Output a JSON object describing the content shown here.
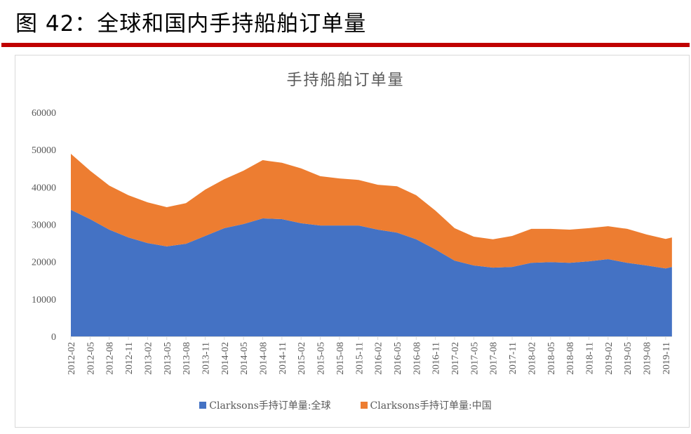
{
  "figure": {
    "title": "图 42：全球和国内手持船舶订单量",
    "rule_color": "#c00000"
  },
  "chart_data": {
    "type": "area",
    "stacked": true,
    "title": "手持船舶订单量",
    "xlabel": "",
    "ylabel": "",
    "ylim": [
      0,
      60000
    ],
    "yticks": [
      0,
      10000,
      20000,
      30000,
      40000,
      50000,
      60000
    ],
    "grid": false,
    "legend_position": "bottom",
    "x": [
      "2012-02",
      "2012-05",
      "2012-08",
      "2012-11",
      "2013-02",
      "2013-05",
      "2013-08",
      "2013-11",
      "2014-02",
      "2014-05",
      "2014-08",
      "2014-11",
      "2015-02",
      "2015-05",
      "2015-08",
      "2015-11",
      "2016-02",
      "2016-05",
      "2016-08",
      "2016-11",
      "2017-02",
      "2017-05",
      "2017-08",
      "2017-11",
      "2018-02",
      "2018-05",
      "2018-08",
      "2018-11",
      "2019-02",
      "2019-05",
      "2019-08",
      "2019-11",
      "2019-12"
    ],
    "xtick_labels": [
      "2012-02",
      "2012-05",
      "2012-08",
      "2012-11",
      "2013-02",
      "2013-05",
      "2013-08",
      "2013-11",
      "2014-02",
      "2014-05",
      "2014-08",
      "2014-11",
      "2015-02",
      "2015-05",
      "2015-08",
      "2015-11",
      "2016-02",
      "2016-05",
      "2016-08",
      "2016-11",
      "2017-02",
      "2017-05",
      "2017-08",
      "2017-11",
      "2018-02",
      "2018-05",
      "2018-08",
      "2018-11",
      "2019-02",
      "2019-05",
      "2019-08",
      "2019-11"
    ],
    "series": [
      {
        "name": "Clarksons手持订单量:全球",
        "color": "#4472c4",
        "values": [
          33900,
          31400,
          28600,
          26500,
          25000,
          24100,
          24800,
          26900,
          29000,
          30100,
          31600,
          31400,
          30300,
          29700,
          29700,
          29700,
          28600,
          27800,
          26000,
          23300,
          20300,
          19000,
          18400,
          18600,
          19700,
          19900,
          19700,
          20100,
          20700,
          19700,
          19000,
          18200,
          18600
        ]
      },
      {
        "name": "Clarksons手持订单量:中国",
        "color": "#ed7d31",
        "values": [
          15000,
          13000,
          11800,
          11300,
          10900,
          10500,
          10900,
          12400,
          13100,
          14300,
          15600,
          15100,
          14700,
          13200,
          12600,
          12200,
          12000,
          12400,
          11800,
          10400,
          8700,
          7700,
          7600,
          8300,
          9100,
          8900,
          8900,
          8900,
          8800,
          9100,
          8300,
          7900,
          7900
        ]
      }
    ]
  }
}
